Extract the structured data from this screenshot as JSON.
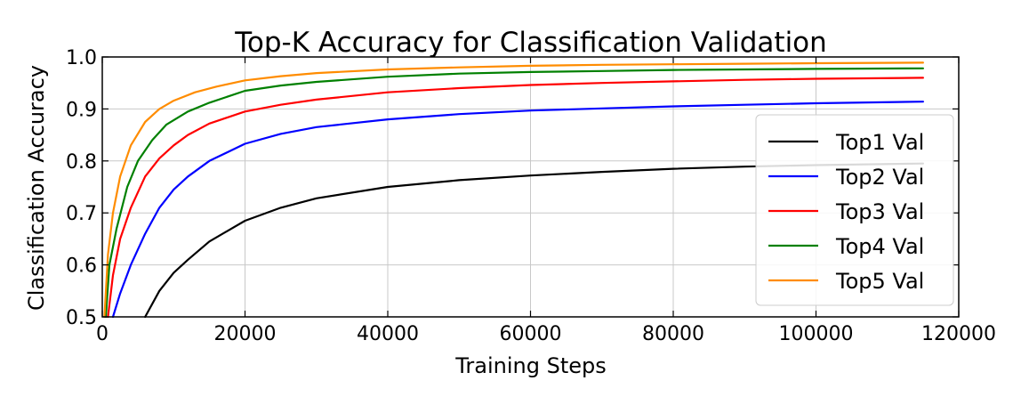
{
  "chart_data": {
    "type": "line",
    "title": "Top-K Accuracy for Classification Validation",
    "xlabel": "Training Steps",
    "ylabel": "Classification Accuracy",
    "xlim": [
      0,
      120000
    ],
    "ylim": [
      0.5,
      1.0
    ],
    "x_ticks": [
      "0",
      "20000",
      "40000",
      "60000",
      "80000",
      "100000",
      "120000"
    ],
    "y_ticks": [
      "0.5",
      "0.6",
      "0.7",
      "0.8",
      "0.9",
      "1.0"
    ],
    "grid": true,
    "legend_position": "right",
    "series": [
      {
        "name": "Top1 Val",
        "color": "#000000",
        "x": [
          6000,
          8000,
          10000,
          12000,
          15000,
          20000,
          25000,
          30000,
          40000,
          50000,
          60000,
          70000,
          80000,
          90000,
          100000,
          115000
        ],
        "y": [
          0.5,
          0.55,
          0.585,
          0.61,
          0.645,
          0.685,
          0.71,
          0.728,
          0.75,
          0.763,
          0.772,
          0.779,
          0.785,
          0.789,
          0.792,
          0.795
        ]
      },
      {
        "name": "Top2 Val",
        "color": "#0000ff",
        "x": [
          1500,
          2500,
          4000,
          6000,
          8000,
          10000,
          12000,
          15000,
          20000,
          25000,
          30000,
          40000,
          50000,
          60000,
          70000,
          80000,
          90000,
          100000,
          115000
        ],
        "y": [
          0.5,
          0.545,
          0.6,
          0.66,
          0.71,
          0.745,
          0.77,
          0.8,
          0.833,
          0.852,
          0.865,
          0.88,
          0.89,
          0.897,
          0.901,
          0.905,
          0.908,
          0.911,
          0.914
        ]
      },
      {
        "name": "Top3 Val",
        "color": "#ff0000",
        "x": [
          800,
          1500,
          2500,
          4000,
          6000,
          8000,
          10000,
          12000,
          15000,
          20000,
          25000,
          30000,
          40000,
          50000,
          60000,
          70000,
          80000,
          90000,
          100000,
          115000
        ],
        "y": [
          0.5,
          0.58,
          0.65,
          0.71,
          0.77,
          0.805,
          0.83,
          0.85,
          0.872,
          0.895,
          0.908,
          0.918,
          0.932,
          0.94,
          0.946,
          0.95,
          0.953,
          0.956,
          0.958,
          0.96
        ]
      },
      {
        "name": "Top4 Val",
        "color": "#008000",
        "x": [
          500,
          1000,
          2000,
          3500,
          5000,
          7000,
          9000,
          12000,
          15000,
          20000,
          25000,
          30000,
          40000,
          50000,
          60000,
          70000,
          80000,
          90000,
          100000,
          115000
        ],
        "y": [
          0.5,
          0.6,
          0.67,
          0.75,
          0.8,
          0.84,
          0.87,
          0.895,
          0.912,
          0.935,
          0.945,
          0.952,
          0.962,
          0.968,
          0.971,
          0.973,
          0.975,
          0.976,
          0.977,
          0.978
        ]
      },
      {
        "name": "Top5 Val",
        "color": "#ff8c00",
        "x": [
          300,
          800,
          1500,
          2500,
          4000,
          6000,
          8000,
          10000,
          13000,
          16000,
          20000,
          25000,
          30000,
          40000,
          50000,
          60000,
          70000,
          80000,
          90000,
          100000,
          115000
        ],
        "y": [
          0.5,
          0.62,
          0.7,
          0.77,
          0.83,
          0.875,
          0.9,
          0.916,
          0.932,
          0.943,
          0.955,
          0.963,
          0.969,
          0.976,
          0.98,
          0.983,
          0.985,
          0.986,
          0.987,
          0.988,
          0.989
        ]
      }
    ]
  }
}
